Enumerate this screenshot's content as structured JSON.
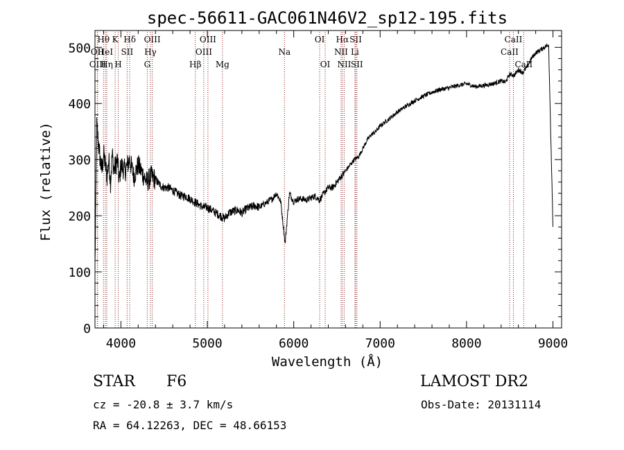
{
  "chart_data": {
    "type": "line",
    "title": "spec-56611-GAC061N46V2_sp12-195.fits",
    "xlabel": "Wavelength (Å)",
    "ylabel": "Flux (relative)",
    "xlim": [
      3700,
      9100
    ],
    "ylim": [
      0,
      530
    ],
    "xticks": [
      4000,
      5000,
      6000,
      7000,
      8000,
      9000
    ],
    "yticks": [
      0,
      100,
      200,
      300,
      400,
      500
    ],
    "grid": false,
    "series": [
      {
        "x": [
          3700,
          3720,
          3740,
          3760,
          3780,
          3800,
          3820,
          3840,
          3860,
          3880,
          3900,
          3920,
          3940,
          3960,
          3980,
          4000,
          4050,
          4100,
          4150,
          4200,
          4250,
          4300,
          4350,
          4400,
          4450,
          4500,
          4550,
          4600,
          4650,
          4700,
          4750,
          4800,
          4850,
          4900,
          4950,
          5000,
          5050,
          5100,
          5150,
          5200,
          5250,
          5300,
          5350,
          5400,
          5450,
          5500,
          5550,
          5600,
          5650,
          5700,
          5750,
          5800,
          5850,
          5900,
          5950,
          6000,
          6050,
          6100,
          6150,
          6200,
          6250,
          6300,
          6350,
          6400,
          6450,
          6500,
          6550,
          6600,
          6650,
          6700,
          6750,
          6800,
          6850,
          6900,
          6950,
          7000,
          7100,
          7200,
          7300,
          7400,
          7500,
          7600,
          7700,
          7800,
          7900,
          8000,
          8100,
          8200,
          8300,
          8400,
          8450,
          8500,
          8550,
          8600,
          8650,
          8700,
          8750,
          8800,
          8850,
          8900,
          8950,
          9000
        ],
        "y": [
          110,
          360,
          330,
          300,
          280,
          310,
          290,
          270,
          300,
          260,
          310,
          280,
          290,
          300,
          260,
          290,
          280,
          300,
          270,
          290,
          275,
          260,
          270,
          265,
          255,
          250,
          250,
          245,
          240,
          235,
          235,
          230,
          225,
          220,
          215,
          215,
          210,
          205,
          200,
          195,
          205,
          208,
          210,
          205,
          212,
          215,
          218,
          215,
          220,
          225,
          230,
          240,
          225,
          150,
          240,
          225,
          230,
          230,
          228,
          232,
          235,
          228,
          240,
          250,
          250,
          260,
          270,
          280,
          290,
          300,
          305,
          320,
          335,
          345,
          350,
          360,
          372,
          385,
          395,
          405,
          413,
          420,
          425,
          428,
          432,
          435,
          430,
          432,
          435,
          440,
          438,
          452,
          450,
          460,
          455,
          465,
          480,
          490,
          495,
          500,
          505,
          180
        ]
      }
    ],
    "line_markers": [
      {
        "label": "Hθ",
        "wavelength": 3798,
        "row": 0
      },
      {
        "label": "OII",
        "wavelength": 3727,
        "row": 1
      },
      {
        "label": "OIII",
        "wavelength": 3730,
        "row": 2
      },
      {
        "label": "HeI",
        "wavelength": 3820,
        "row": 1
      },
      {
        "label": "Hη",
        "wavelength": 3836,
        "row": 2
      },
      {
        "label": "K",
        "wavelength": 3934,
        "row": 0
      },
      {
        "label": "SII",
        "wavelength": 4072,
        "row": 1
      },
      {
        "label": "H",
        "wavelength": 3969,
        "row": 2
      },
      {
        "label": "Hδ",
        "wavelength": 4102,
        "row": 0
      },
      {
        "label": "OIII",
        "wavelength": 4363,
        "row": 0
      },
      {
        "label": "Hγ",
        "wavelength": 4341,
        "row": 1
      },
      {
        "label": "G",
        "wavelength": 4305,
        "row": 2
      },
      {
        "label": "OIII",
        "wavelength": 5007,
        "row": 0
      },
      {
        "label": "OIII",
        "wavelength": 4959,
        "row": 1
      },
      {
        "label": "Hβ",
        "wavelength": 4861,
        "row": 2
      },
      {
        "label": "Mg",
        "wavelength": 5175,
        "row": 2
      },
      {
        "label": "Na",
        "wavelength": 5893,
        "row": 1
      },
      {
        "label": "OI",
        "wavelength": 6300,
        "row": 0
      },
      {
        "label": "OI",
        "wavelength": 6364,
        "row": 2
      },
      {
        "label": "Hα",
        "wavelength": 6563,
        "row": 0
      },
      {
        "label": "SII",
        "wavelength": 6717,
        "row": 0
      },
      {
        "label": "NII",
        "wavelength": 6548,
        "row": 1
      },
      {
        "label": "Li",
        "wavelength": 6708,
        "row": 1
      },
      {
        "label": "NII",
        "wavelength": 6584,
        "row": 2
      },
      {
        "label": "SII",
        "wavelength": 6731,
        "row": 2
      },
      {
        "label": "CaII",
        "wavelength": 8542,
        "row": 0
      },
      {
        "label": "CaII",
        "wavelength": 8498,
        "row": 1
      },
      {
        "label": "CaII",
        "wavelength": 8662,
        "row": 2
      }
    ],
    "marker_color": "#8b1a1a"
  },
  "info": {
    "classification": "STAR",
    "subclass": "F6",
    "survey": "LAMOST DR2",
    "cz": "cz = -20.8 ± 3.7 km/s",
    "obs_date": "Obs-Date: 20131114",
    "coords": "RA =  64.12263, DEC =  48.66153"
  }
}
